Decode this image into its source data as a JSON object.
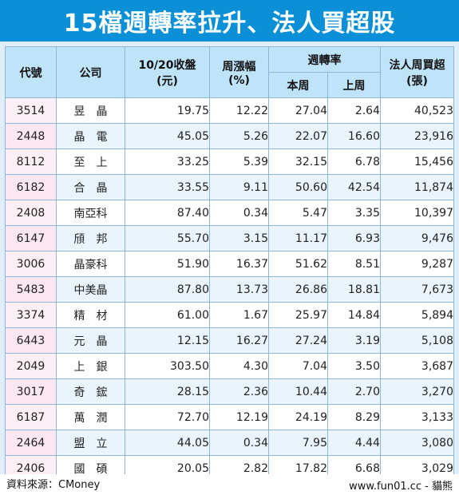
{
  "title": "15檔週轉率拉升、法人買超股",
  "headers": {
    "code": "代號",
    "company": "公司",
    "close_line1": "10/20收盤",
    "close_line2": "(元)",
    "change_line1": "周漲幅",
    "change_line2": "(%)",
    "turnover": "週轉率",
    "this_week": "本周",
    "last_week": "上周",
    "buy_line1": "法人周買超",
    "buy_line2": "(張)"
  },
  "rows": [
    {
      "code": "3514",
      "name": "昱　晶",
      "close": "19.75",
      "change": "12.22",
      "tw": "27.04",
      "lw": "2.64",
      "buy": "40,523"
    },
    {
      "code": "2448",
      "name": "晶　電",
      "close": "45.05",
      "change": "5.26",
      "tw": "22.07",
      "lw": "16.60",
      "buy": "23,916"
    },
    {
      "code": "8112",
      "name": "至　上",
      "close": "33.25",
      "change": "5.39",
      "tw": "32.15",
      "lw": "6.78",
      "buy": "15,456"
    },
    {
      "code": "6182",
      "name": "合　晶",
      "close": "33.55",
      "change": "9.11",
      "tw": "50.60",
      "lw": "42.54",
      "buy": "11,874"
    },
    {
      "code": "2408",
      "name": "南亞科",
      "close": "87.40",
      "change": "0.34",
      "tw": "5.47",
      "lw": "3.35",
      "buy": "10,397"
    },
    {
      "code": "6147",
      "name": "頎　邦",
      "close": "55.70",
      "change": "3.15",
      "tw": "11.17",
      "lw": "6.93",
      "buy": "9,476"
    },
    {
      "code": "3006",
      "name": "晶豪科",
      "close": "51.90",
      "change": "16.37",
      "tw": "51.62",
      "lw": "8.51",
      "buy": "9,287"
    },
    {
      "code": "5483",
      "name": "中美晶",
      "close": "87.80",
      "change": "13.73",
      "tw": "26.86",
      "lw": "18.81",
      "buy": "7,673"
    },
    {
      "code": "3374",
      "name": "精　材",
      "close": "61.00",
      "change": "1.67",
      "tw": "25.97",
      "lw": "14.84",
      "buy": "5,894"
    },
    {
      "code": "6443",
      "name": "元　晶",
      "close": "12.15",
      "change": "16.27",
      "tw": "27.24",
      "lw": "3.19",
      "buy": "5,108"
    },
    {
      "code": "2049",
      "name": "上　銀",
      "close": "303.50",
      "change": "4.30",
      "tw": "7.04",
      "lw": "3.50",
      "buy": "3,687"
    },
    {
      "code": "3017",
      "name": "奇　鋐",
      "close": "28.15",
      "change": "2.36",
      "tw": "10.44",
      "lw": "2.70",
      "buy": "3,270"
    },
    {
      "code": "6187",
      "name": "萬　潤",
      "close": "72.70",
      "change": "12.19",
      "tw": "24.19",
      "lw": "8.29",
      "buy": "3,133"
    },
    {
      "code": "2464",
      "name": "盟　立",
      "close": "44.05",
      "change": "0.34",
      "tw": "7.95",
      "lw": "4.44",
      "buy": "3,080"
    },
    {
      "code": "2406",
      "name": "國　碩",
      "close": "20.05",
      "change": "2.82",
      "tw": "17.82",
      "lw": "6.68",
      "buy": "3,029"
    }
  ],
  "source": "資料來源：CMoney",
  "credit": "www.fun01.cc - 貓熊"
}
